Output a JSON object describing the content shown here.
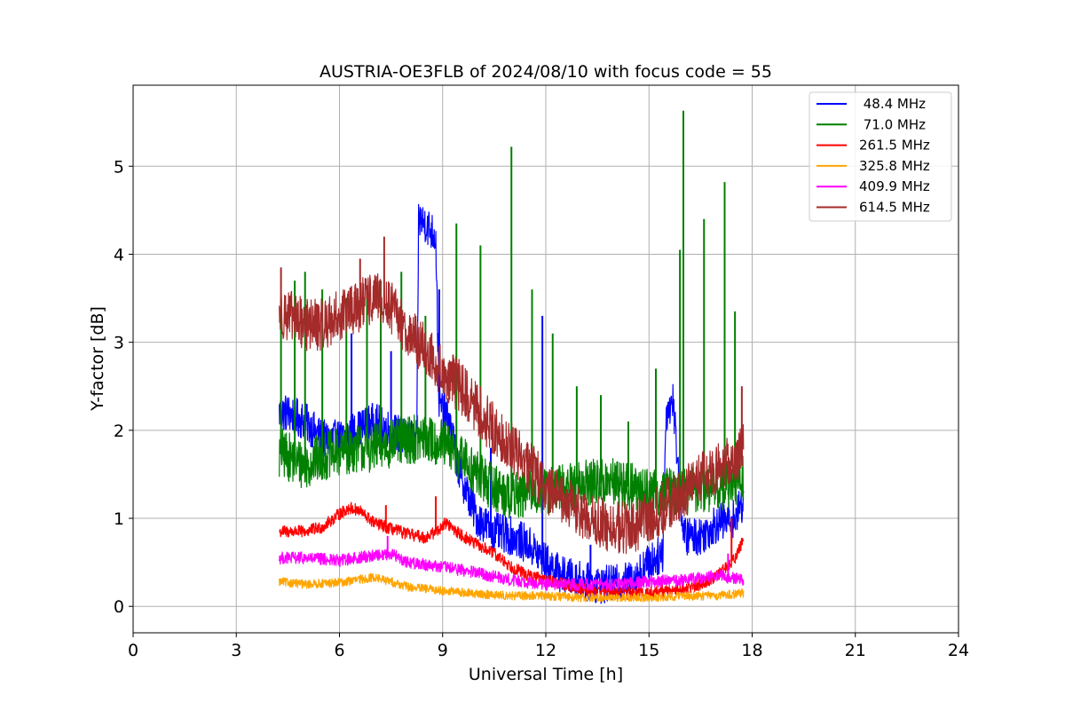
{
  "chart_data": {
    "type": "line",
    "title": "AUSTRIA-OE3FLB of 2024/08/10 with focus code = 55",
    "xlabel": "Universal Time [h]",
    "ylabel": "Y-factor [dB]",
    "xlim": [
      0,
      24
    ],
    "ylim": [
      -0.3,
      5.92
    ],
    "xticks": [
      0,
      3,
      6,
      9,
      12,
      15,
      18,
      21,
      24
    ],
    "xtick_labels": [
      "0",
      "3",
      "6",
      "9",
      "12",
      "15",
      "18",
      "21",
      "24"
    ],
    "yticks": [
      0,
      1,
      2,
      3,
      4,
      5
    ],
    "ytick_labels": [
      "0",
      "1",
      "2",
      "3",
      "4",
      "5"
    ],
    "grid": true,
    "legend_position": "top-right",
    "series": [
      {
        "name": " 48.4 MHz",
        "color": "#0000ff",
        "x": [
          4.25,
          4.5,
          5.0,
          5.5,
          6.0,
          6.5,
          7.0,
          7.5,
          8.0,
          8.25,
          8.3,
          8.5,
          8.8,
          8.9,
          9.2,
          9.5,
          10.0,
          10.5,
          11.0,
          11.5,
          12.0,
          12.5,
          13.0,
          13.5,
          14.0,
          14.5,
          15.0,
          15.4,
          15.5,
          15.7,
          16.0,
          16.5,
          17.0,
          17.5,
          17.75
        ],
        "y": [
          2.2,
          2.2,
          2.1,
          1.9,
          1.9,
          2.0,
          2.1,
          2.0,
          1.9,
          1.9,
          4.4,
          4.35,
          4.2,
          2.3,
          2.1,
          1.5,
          1.0,
          0.85,
          0.8,
          0.7,
          0.5,
          0.35,
          0.3,
          0.25,
          0.25,
          0.3,
          0.5,
          0.6,
          2.2,
          2.35,
          0.8,
          0.8,
          0.95,
          1.0,
          1.2
        ],
        "spikes": [
          [
            6.35,
            3.1
          ],
          [
            8.9,
            3.6
          ],
          [
            11.9,
            3.3
          ],
          [
            7.5,
            2.9
          ],
          [
            10.4,
            1.8
          ],
          [
            13.3,
            0.7
          ]
        ]
      },
      {
        "name": " 71.0 MHz",
        "color": "#008000",
        "x": [
          4.25,
          4.3,
          4.5,
          5.0,
          5.5,
          6.0,
          6.5,
          7.0,
          7.5,
          8.0,
          8.5,
          9.0,
          9.5,
          10.0,
          10.5,
          11.0,
          11.5,
          12.0,
          12.5,
          13.0,
          13.5,
          14.0,
          14.5,
          15.0,
          15.5,
          16.0,
          16.5,
          17.0,
          17.5,
          17.75
        ],
        "y": [
          1.7,
          1.75,
          1.7,
          1.6,
          1.7,
          1.75,
          1.8,
          1.8,
          1.85,
          1.9,
          1.9,
          1.85,
          1.7,
          1.5,
          1.35,
          1.25,
          1.3,
          1.3,
          1.35,
          1.4,
          1.4,
          1.4,
          1.35,
          1.3,
          1.3,
          1.3,
          1.35,
          1.35,
          1.4,
          1.45
        ],
        "spikes": [
          [
            4.3,
            3.5
          ],
          [
            4.7,
            3.7
          ],
          [
            5.0,
            3.8
          ],
          [
            5.5,
            3.6
          ],
          [
            6.2,
            3.5
          ],
          [
            6.8,
            3.6
          ],
          [
            7.2,
            3.7
          ],
          [
            7.8,
            3.8
          ],
          [
            8.5,
            3.3
          ],
          [
            9.4,
            4.35
          ],
          [
            10.1,
            4.1
          ],
          [
            11.0,
            5.22
          ],
          [
            11.6,
            3.6
          ],
          [
            12.2,
            3.1
          ],
          [
            12.9,
            2.5
          ],
          [
            13.6,
            2.4
          ],
          [
            14.4,
            2.1
          ],
          [
            15.2,
            2.7
          ],
          [
            15.9,
            4.05
          ],
          [
            16.0,
            5.63
          ],
          [
            16.6,
            4.4
          ],
          [
            17.2,
            4.82
          ],
          [
            17.5,
            3.35
          ]
        ]
      },
      {
        "name": "261.5 MHz",
        "color": "#ff0000",
        "x": [
          4.25,
          4.5,
          5.0,
          5.5,
          6.0,
          6.3,
          6.6,
          7.0,
          7.5,
          8.0,
          8.5,
          8.8,
          9.1,
          9.5,
          10.0,
          10.5,
          11.0,
          11.5,
          12.0,
          12.5,
          13.0,
          13.5,
          14.0,
          14.5,
          15.0,
          15.5,
          16.0,
          16.5,
          17.0,
          17.5,
          17.75
        ],
        "y": [
          0.85,
          0.85,
          0.85,
          0.9,
          1.05,
          1.12,
          1.08,
          0.95,
          0.88,
          0.82,
          0.78,
          0.85,
          0.95,
          0.82,
          0.7,
          0.6,
          0.45,
          0.35,
          0.3,
          0.25,
          0.2,
          0.18,
          0.15,
          0.15,
          0.15,
          0.18,
          0.2,
          0.25,
          0.35,
          0.55,
          0.75
        ],
        "spikes": [
          [
            7.35,
            1.15
          ],
          [
            8.8,
            1.25
          ],
          [
            17.4,
            1.0
          ]
        ]
      },
      {
        "name": "325.8 MHz",
        "color": "#ffa500",
        "x": [
          4.25,
          5.0,
          6.0,
          6.5,
          7.0,
          7.5,
          8.0,
          9.0,
          10.0,
          11.0,
          12.0,
          13.0,
          14.0,
          15.0,
          16.0,
          17.0,
          17.75
        ],
        "y": [
          0.28,
          0.25,
          0.27,
          0.3,
          0.33,
          0.28,
          0.22,
          0.18,
          0.14,
          0.12,
          0.12,
          0.1,
          0.1,
          0.1,
          0.12,
          0.12,
          0.15
        ],
        "spikes": []
      },
      {
        "name": "409.9 MHz",
        "color": "#ff00ff",
        "x": [
          4.25,
          5.0,
          6.0,
          6.5,
          7.0,
          7.5,
          8.0,
          9.0,
          10.0,
          11.0,
          12.0,
          13.0,
          14.0,
          15.0,
          16.0,
          17.0,
          17.75
        ],
        "y": [
          0.55,
          0.55,
          0.52,
          0.55,
          0.58,
          0.6,
          0.5,
          0.45,
          0.38,
          0.3,
          0.25,
          0.25,
          0.25,
          0.28,
          0.3,
          0.35,
          0.3
        ],
        "spikes": [
          [
            7.4,
            0.8
          ],
          [
            17.3,
            0.6
          ]
        ]
      },
      {
        "name": "614.5 MHz",
        "color": "#a52a2a",
        "x": [
          4.25,
          4.5,
          5.0,
          5.5,
          6.0,
          6.5,
          7.0,
          7.5,
          8.0,
          8.5,
          9.0,
          9.5,
          10.0,
          10.5,
          11.0,
          11.5,
          12.0,
          12.5,
          13.0,
          13.5,
          14.0,
          14.5,
          15.0,
          15.5,
          16.0,
          16.5,
          17.0,
          17.5,
          17.75
        ],
        "y": [
          3.35,
          3.3,
          3.2,
          3.2,
          3.3,
          3.4,
          3.5,
          3.4,
          3.1,
          2.9,
          2.65,
          2.5,
          2.25,
          2.0,
          1.8,
          1.6,
          1.35,
          1.2,
          1.05,
          0.95,
          0.9,
          0.9,
          1.0,
          1.15,
          1.3,
          1.45,
          1.55,
          1.7,
          1.8
        ],
        "spikes": [
          [
            4.3,
            3.85
          ],
          [
            6.6,
            3.95
          ],
          [
            7.3,
            4.2
          ],
          [
            17.7,
            2.5
          ]
        ]
      }
    ]
  }
}
